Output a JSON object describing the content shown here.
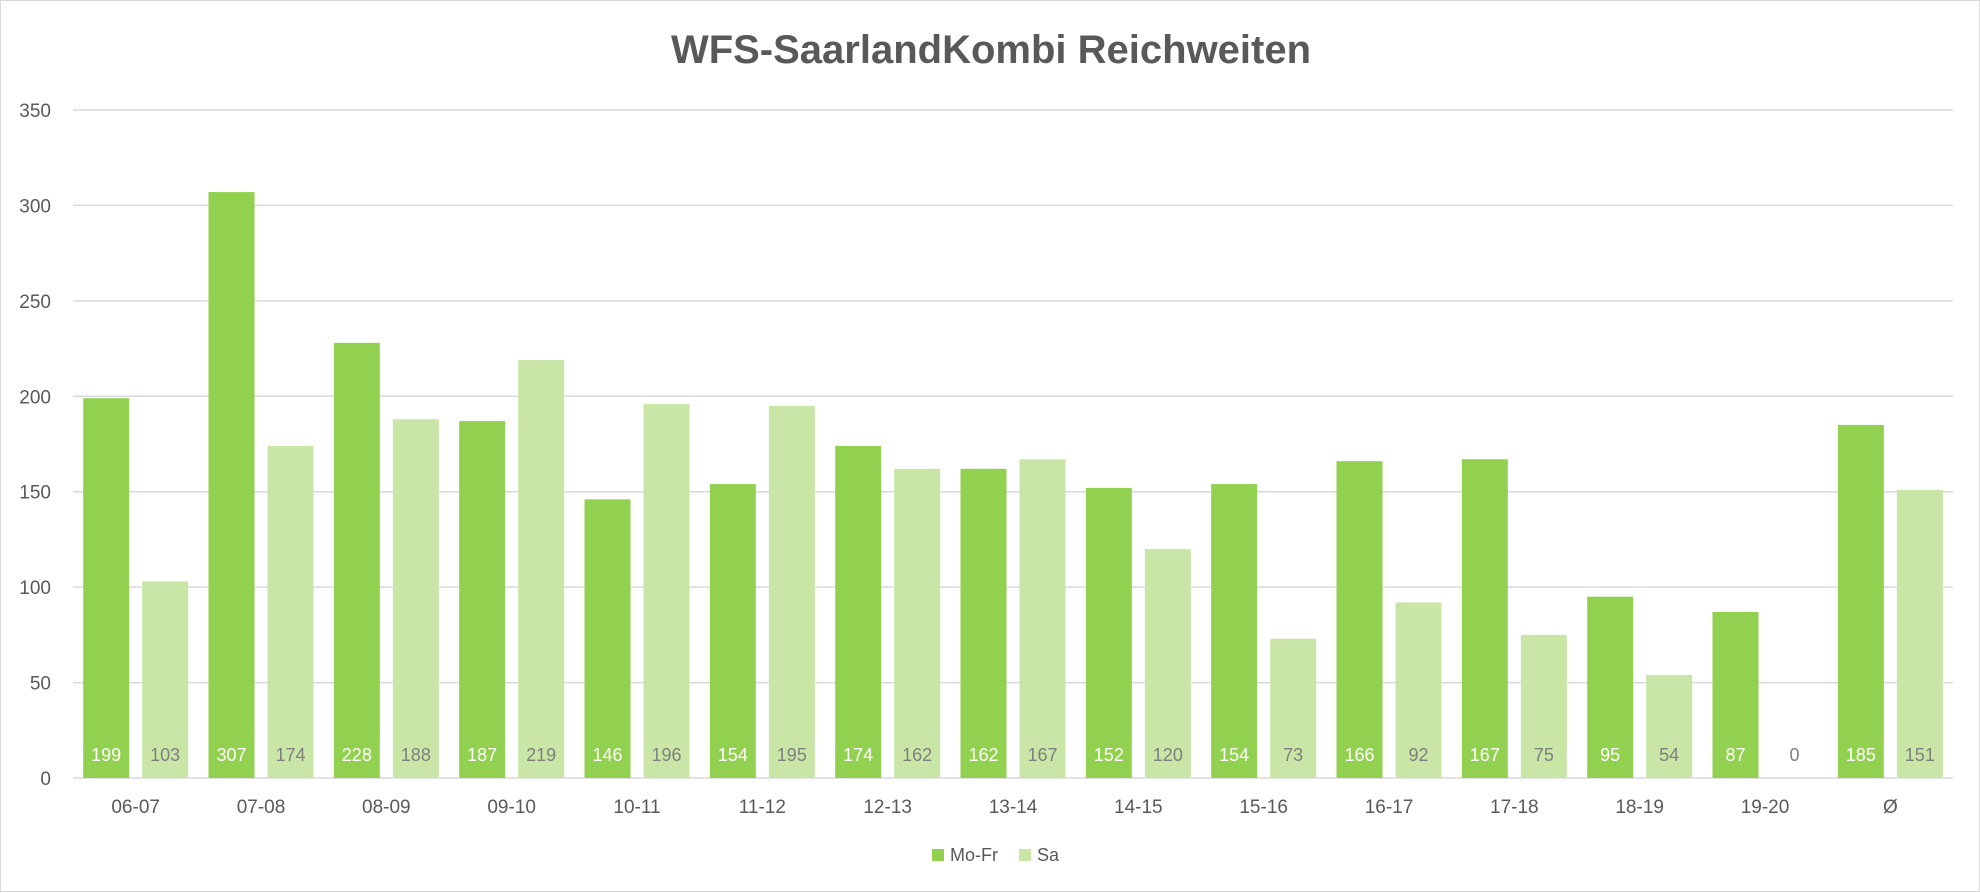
{
  "chart_data": {
    "type": "bar",
    "title": "WFS-SaarlandKombi Reichweiten",
    "categories": [
      "06-07",
      "07-08",
      "08-09",
      "09-10",
      "10-11",
      "11-12",
      "12-13",
      "13-14",
      "14-15",
      "15-16",
      "16-17",
      "17-18",
      "18-19",
      "19-20",
      "Ø"
    ],
    "series": [
      {
        "name": "Mo-Fr",
        "color": "#92d050",
        "label_color": "#ffffff",
        "values": [
          199,
          307,
          228,
          187,
          146,
          154,
          174,
          162,
          152,
          154,
          166,
          167,
          95,
          87,
          185
        ]
      },
      {
        "name": "Sa",
        "color": "#c9e6a7",
        "label_color": "#7f7f7f",
        "values": [
          103,
          174,
          188,
          219,
          196,
          195,
          162,
          167,
          120,
          73,
          92,
          75,
          54,
          0,
          151
        ]
      }
    ],
    "ylim": [
      0,
      350
    ],
    "yticks": [
      0,
      50,
      100,
      150,
      200,
      250,
      300,
      350
    ],
    "grid": true,
    "legend_position": "bottom",
    "gridline_color": "#d9d9d9"
  }
}
